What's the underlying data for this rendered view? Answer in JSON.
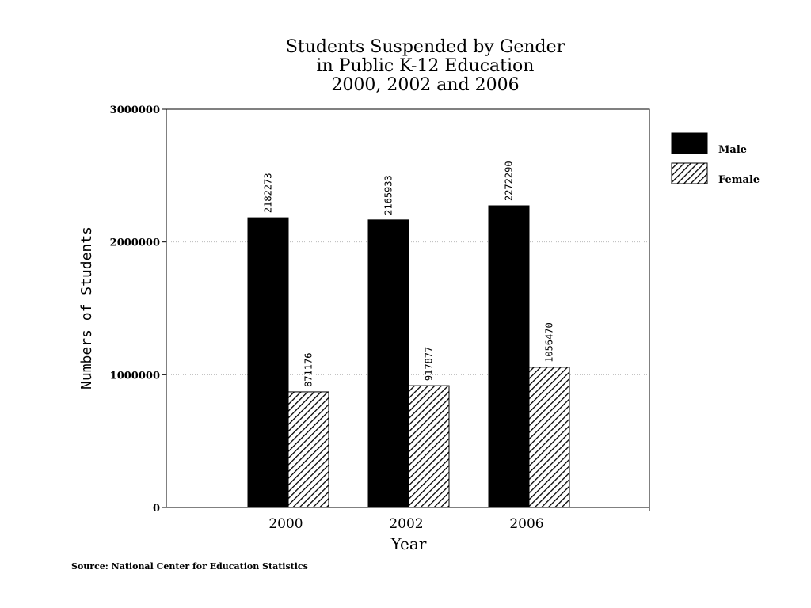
{
  "chart_data": {
    "type": "bar",
    "title": [
      "Students Suspended by Gender",
      "in Public K-12 Education",
      "2000, 2002 and 2006"
    ],
    "xlabel": "Year",
    "ylabel": "Numbers of Students",
    "categories": [
      "2000",
      "2002",
      "2006"
    ],
    "ylim": [
      0,
      3000000
    ],
    "yticks": [
      "0",
      "1000000",
      "2000000",
      "3000000"
    ],
    "grid": true,
    "legend_position": "right",
    "series": [
      {
        "name": "Male",
        "fill": "solid",
        "color": "#000000",
        "values": [
          2182273,
          2165933,
          2272290
        ],
        "labels": [
          "2182273",
          "2165933",
          "2272290"
        ]
      },
      {
        "name": "Female",
        "fill": "diagonal-hatch",
        "color": "#000000",
        "values": [
          871176,
          917877,
          1056470
        ],
        "labels": [
          "871176",
          "917877",
          "1056470"
        ]
      }
    ],
    "source": "Source: National Center for Education Statistics"
  }
}
